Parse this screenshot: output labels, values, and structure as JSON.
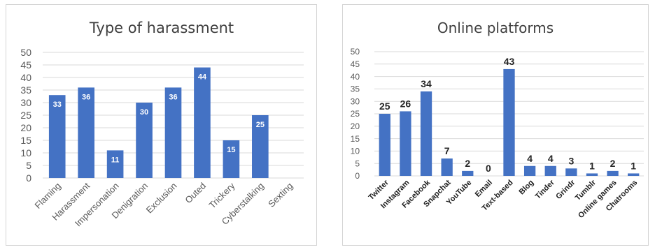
{
  "chart_data": [
    {
      "type": "bar",
      "title": "Type of harassment",
      "categories": [
        "Flaming",
        "Harassment",
        "Impersonation",
        "Denigration",
        "Exclusion",
        "Outed",
        "Trickery",
        "Cyberstalking",
        "Sexting"
      ],
      "values": [
        33,
        36,
        11,
        30,
        36,
        44,
        15,
        25,
        0
      ],
      "data_labels": [
        "33",
        "36",
        "11",
        "30",
        "36",
        "44",
        "15",
        "25",
        ""
      ],
      "y_ticks": [
        "0",
        "5",
        "10",
        "15",
        "20",
        "25",
        "30",
        "35",
        "40",
        "45",
        "50"
      ],
      "ylim": [
        0,
        50
      ],
      "grid": true,
      "legend": "none",
      "bar_color": "#4472c4"
    },
    {
      "type": "bar",
      "title": "Online platforms",
      "categories": [
        "Twitter",
        "Instagram",
        "Facebook",
        "Snapchat",
        "YouTube",
        "Email",
        "Text-based",
        "Blog",
        "Tinder",
        "Grindr",
        "Tumblr",
        "Online games",
        "Chatrooms"
      ],
      "values": [
        25,
        26,
        34,
        7,
        2,
        0,
        43,
        4,
        4,
        3,
        1,
        2,
        1
      ],
      "data_labels": [
        "25",
        "26",
        "34",
        "7",
        "2",
        "0",
        "43",
        "4",
        "4",
        "3",
        "1",
        "2",
        "1"
      ],
      "y_ticks": [
        "0",
        "5",
        "10",
        "15",
        "20",
        "25",
        "30",
        "35",
        "40",
        "45",
        "50"
      ],
      "ylim": [
        0,
        50
      ],
      "grid": true,
      "legend": "none",
      "bar_color": "#4472c4"
    }
  ]
}
